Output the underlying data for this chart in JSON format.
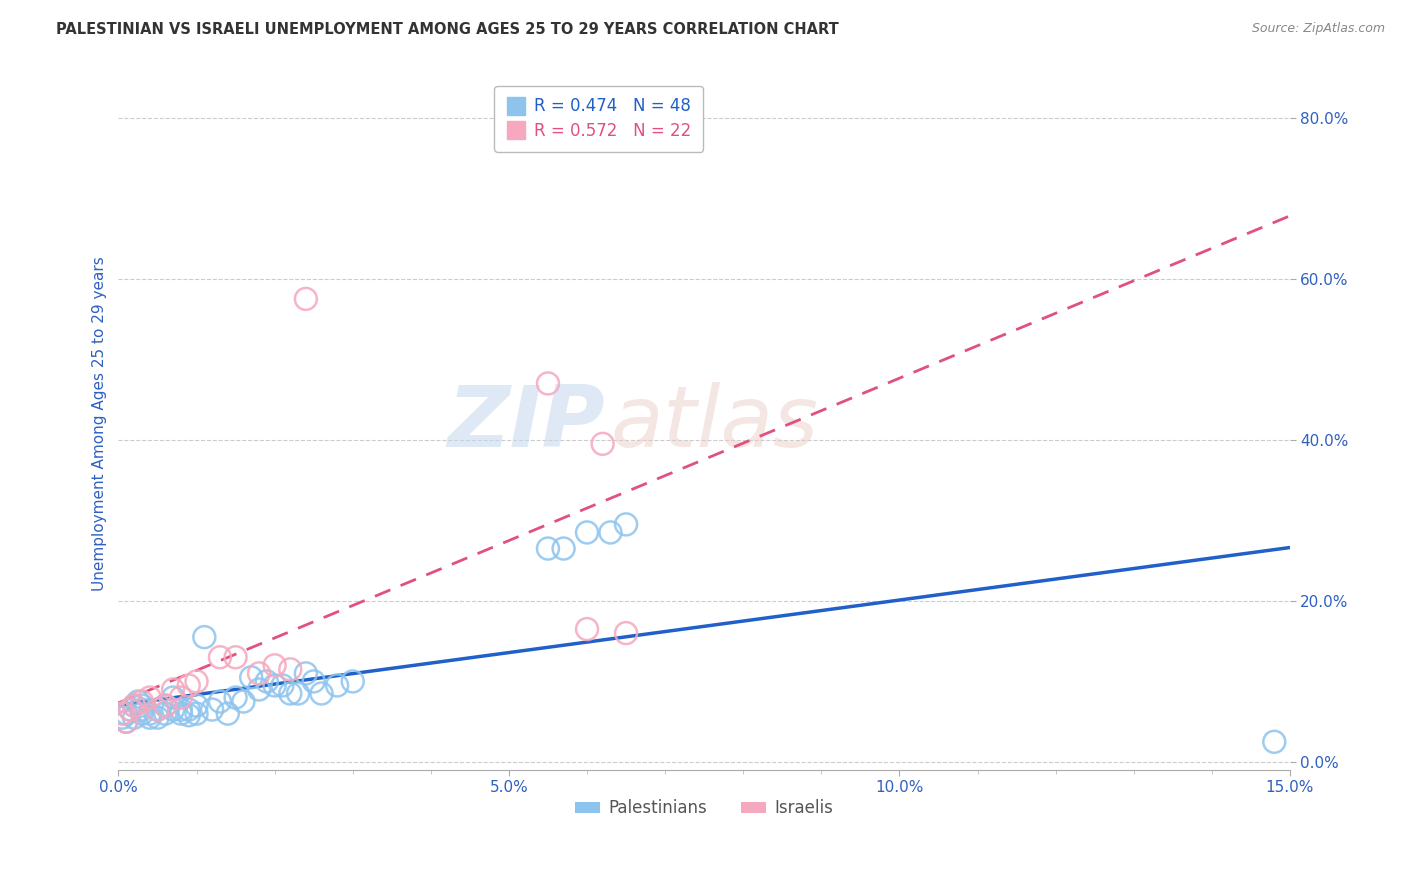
{
  "title": "PALESTINIAN VS ISRAELI UNEMPLOYMENT AMONG AGES 25 TO 29 YEARS CORRELATION CHART",
  "source": "Source: ZipAtlas.com",
  "ylabel": "Unemployment Among Ages 25 to 29 years",
  "xlim": [
    0.0,
    0.15
  ],
  "ylim": [
    -0.01,
    0.85
  ],
  "yticks": [
    0.0,
    0.2,
    0.4,
    0.6,
    0.8
  ],
  "xticks": [
    0.0,
    0.05,
    0.1,
    0.15
  ],
  "palestinians_x": [
    0.0005,
    0.001,
    0.001,
    0.0015,
    0.002,
    0.002,
    0.0025,
    0.003,
    0.003,
    0.003,
    0.004,
    0.004,
    0.005,
    0.005,
    0.006,
    0.006,
    0.007,
    0.007,
    0.008,
    0.008,
    0.009,
    0.009,
    0.01,
    0.01,
    0.011,
    0.012,
    0.013,
    0.014,
    0.015,
    0.016,
    0.017,
    0.018,
    0.019,
    0.02,
    0.021,
    0.022,
    0.023,
    0.024,
    0.025,
    0.026,
    0.028,
    0.03,
    0.055,
    0.057,
    0.06,
    0.063,
    0.065,
    0.148
  ],
  "palestinians_y": [
    0.055,
    0.06,
    0.05,
    0.065,
    0.07,
    0.055,
    0.075,
    0.06,
    0.065,
    0.07,
    0.055,
    0.06,
    0.055,
    0.065,
    0.07,
    0.06,
    0.08,
    0.065,
    0.065,
    0.06,
    0.058,
    0.065,
    0.06,
    0.07,
    0.155,
    0.065,
    0.075,
    0.06,
    0.08,
    0.075,
    0.105,
    0.09,
    0.1,
    0.095,
    0.095,
    0.085,
    0.085,
    0.11,
    0.1,
    0.085,
    0.095,
    0.1,
    0.265,
    0.265,
    0.285,
    0.285,
    0.295,
    0.025
  ],
  "israelis_x": [
    0.0005,
    0.001,
    0.0015,
    0.002,
    0.003,
    0.004,
    0.005,
    0.006,
    0.007,
    0.008,
    0.009,
    0.01,
    0.013,
    0.015,
    0.018,
    0.02,
    0.022,
    0.024,
    0.055,
    0.06,
    0.062,
    0.065
  ],
  "israelis_y": [
    0.06,
    0.05,
    0.065,
    0.07,
    0.075,
    0.08,
    0.065,
    0.07,
    0.09,
    0.08,
    0.095,
    0.1,
    0.13,
    0.13,
    0.11,
    0.12,
    0.115,
    0.575,
    0.47,
    0.165,
    0.395,
    0.16
  ],
  "r_palestinians": 0.474,
  "n_palestinians": 48,
  "r_israelis": 0.572,
  "n_israelis": 22,
  "color_palestinians": "#8DC4EE",
  "color_israelis": "#F5A8BE",
  "color_line_palestinians": "#2060C8",
  "color_line_israelis": "#E05080",
  "color_title": "#333333",
  "color_source": "#888888",
  "color_ylabel": "#3060C0",
  "color_ytick_label": "#3060C0",
  "color_xtick_label": "#3060C0",
  "background_color": "#FFFFFF",
  "grid_color": "#CCCCCC",
  "legend_box_color": "#DDDDDD",
  "watermark_zip_color": "#C8D8F0",
  "watermark_atlas_color": "#D8C8C0"
}
